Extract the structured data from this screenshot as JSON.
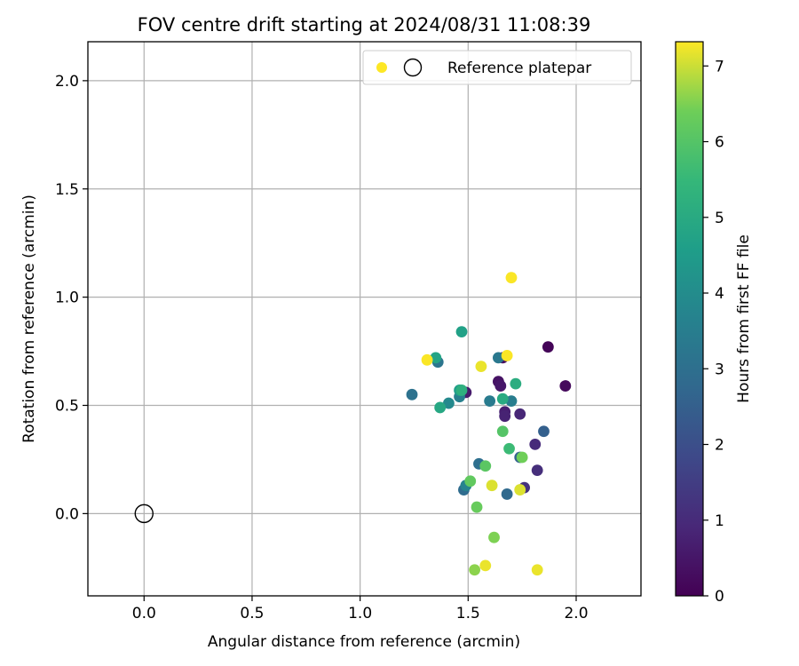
{
  "chart_data": {
    "type": "scatter",
    "title": "FOV centre drift starting at 2024/08/31 11:08:39",
    "xlabel": "Angular distance from reference (arcmin)",
    "ylabel": "Rotation from reference (arcmin)",
    "xlim": [
      -0.26,
      2.3
    ],
    "ylim": [
      -0.38,
      2.18
    ],
    "xticks": [
      0.0,
      0.5,
      1.0,
      1.5,
      2.0
    ],
    "xtick_labels": [
      "0.0",
      "0.5",
      "1.0",
      "1.5",
      "2.0"
    ],
    "yticks": [
      0.0,
      0.5,
      1.0,
      1.5,
      2.0
    ],
    "ytick_labels": [
      "0.0",
      "0.5",
      "1.0",
      "1.5",
      "2.0"
    ],
    "grid": true,
    "legend": {
      "position": "upper right",
      "label": "Reference platepar"
    },
    "colorbar": {
      "label": "Hours from first FF file",
      "range": [
        0,
        7.32
      ],
      "ticks": [
        0,
        1,
        2,
        3,
        4,
        5,
        6,
        7
      ],
      "tick_labels": [
        "0",
        "1",
        "2",
        "3",
        "4",
        "5",
        "6",
        "7"
      ],
      "colormap": "viridis"
    },
    "reference_point": {
      "x": 0.0,
      "y": 0.0,
      "label": "Reference platepar"
    },
    "points": [
      {
        "x": 1.87,
        "y": 0.77,
        "h": 0.1
      },
      {
        "x": 1.95,
        "y": 0.59,
        "h": 0.2
      },
      {
        "x": 1.66,
        "y": 0.72,
        "h": 0.3
      },
      {
        "x": 1.64,
        "y": 0.61,
        "h": 0.4
      },
      {
        "x": 1.65,
        "y": 0.59,
        "h": 0.5
      },
      {
        "x": 1.49,
        "y": 0.56,
        "h": 0.6
      },
      {
        "x": 1.67,
        "y": 0.47,
        "h": 0.7
      },
      {
        "x": 1.67,
        "y": 0.45,
        "h": 0.8
      },
      {
        "x": 1.74,
        "y": 0.46,
        "h": 0.9
      },
      {
        "x": 1.81,
        "y": 0.32,
        "h": 1.0
      },
      {
        "x": 1.82,
        "y": 0.2,
        "h": 1.1
      },
      {
        "x": 1.76,
        "y": 0.12,
        "h": 1.2
      },
      {
        "x": 1.85,
        "y": 0.38,
        "h": 2.5
      },
      {
        "x": 1.74,
        "y": 0.26,
        "h": 2.6
      },
      {
        "x": 1.68,
        "y": 0.09,
        "h": 2.8
      },
      {
        "x": 1.48,
        "y": 0.11,
        "h": 2.9
      },
      {
        "x": 1.55,
        "y": 0.23,
        "h": 3.0
      },
      {
        "x": 1.24,
        "y": 0.55,
        "h": 3.1
      },
      {
        "x": 1.36,
        "y": 0.7,
        "h": 3.2
      },
      {
        "x": 1.64,
        "y": 0.72,
        "h": 3.3
      },
      {
        "x": 1.6,
        "y": 0.52,
        "h": 3.4
      },
      {
        "x": 1.7,
        "y": 0.52,
        "h": 3.5
      },
      {
        "x": 1.46,
        "y": 0.54,
        "h": 3.6
      },
      {
        "x": 1.49,
        "y": 0.13,
        "h": 3.7
      },
      {
        "x": 1.41,
        "y": 0.51,
        "h": 3.9
      },
      {
        "x": 1.46,
        "y": 0.57,
        "h": 4.6
      },
      {
        "x": 1.47,
        "y": 0.84,
        "h": 4.7
      },
      {
        "x": 1.35,
        "y": 0.72,
        "h": 4.8
      },
      {
        "x": 1.37,
        "y": 0.49,
        "h": 4.9
      },
      {
        "x": 1.66,
        "y": 0.53,
        "h": 5.0
      },
      {
        "x": 1.72,
        "y": 0.6,
        "h": 5.1
      },
      {
        "x": 1.47,
        "y": 0.57,
        "h": 5.2
      },
      {
        "x": 1.69,
        "y": 0.3,
        "h": 5.6
      },
      {
        "x": 1.66,
        "y": 0.38,
        "h": 6.0
      },
      {
        "x": 1.58,
        "y": 0.22,
        "h": 6.1
      },
      {
        "x": 1.51,
        "y": 0.15,
        "h": 6.2
      },
      {
        "x": 1.54,
        "y": 0.03,
        "h": 6.3
      },
      {
        "x": 1.75,
        "y": 0.26,
        "h": 6.4
      },
      {
        "x": 1.62,
        "y": -0.11,
        "h": 6.5
      },
      {
        "x": 1.53,
        "y": -0.26,
        "h": 6.6
      },
      {
        "x": 1.61,
        "y": 0.13,
        "h": 7.1
      },
      {
        "x": 1.74,
        "y": 0.11,
        "h": 7.1
      },
      {
        "x": 1.58,
        "y": -0.24,
        "h": 7.2
      },
      {
        "x": 1.82,
        "y": -0.26,
        "h": 7.2
      },
      {
        "x": 1.56,
        "y": 0.68,
        "h": 7.2
      },
      {
        "x": 1.68,
        "y": 0.73,
        "h": 7.3
      },
      {
        "x": 1.31,
        "y": 0.71,
        "h": 7.3
      },
      {
        "x": 1.7,
        "y": 1.09,
        "h": 7.3
      }
    ]
  }
}
